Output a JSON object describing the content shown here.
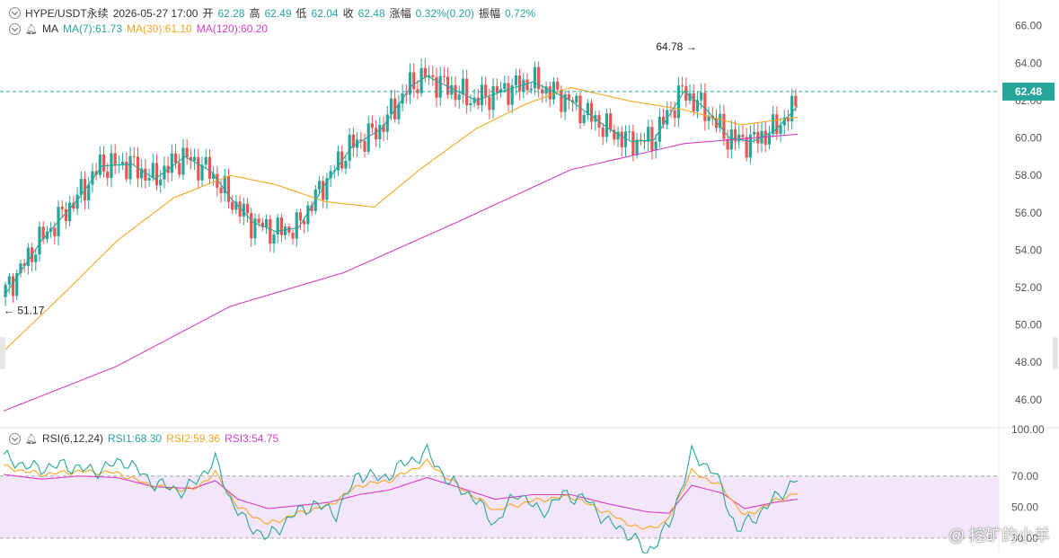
{
  "header": {
    "symbol": "HYPE/USDT永续",
    "datetime": "2026-05-27 17:00",
    "open_label": "开",
    "open": "62.28",
    "high_label": "高",
    "high": "62.49",
    "low_label": "低",
    "low": "62.04",
    "close_label": "收",
    "close": "62.48",
    "change_label": "涨幅",
    "change": "0.32%(0.20)",
    "amp_label": "振幅",
    "amp": "0.72%"
  },
  "ma_legend": {
    "title": "MA",
    "ma7": "MA(7):61.73",
    "ma30": "MA(30):61.10",
    "ma120": "MA(120):60.20"
  },
  "rsi_legend": {
    "title": "RSI(6,12,24)",
    "rsi1": "RSI1:68.30",
    "rsi2": "RSI2:59.36",
    "rsi3": "RSI3:54.75"
  },
  "price_tag": "62.48",
  "high_marker": "64.78",
  "low_marker": "51.17",
  "watermark": "@ 挖矿的小羊",
  "colors": {
    "up": "#26a69a",
    "down": "#ef5350",
    "ma7": "#26a69a",
    "ma30": "#f5a623",
    "ma120": "#d63fc1",
    "rsi_band": "#f3e6fb",
    "last_price": "#26a69a"
  },
  "chart_data": [
    {
      "type": "candlestick",
      "title": "HYPE/USDT永续",
      "ylim": [
        44.6,
        66.8
      ],
      "y_ticks": [
        "66.00",
        "64.00",
        "62.00",
        "60.00",
        "58.00",
        "56.00",
        "54.00",
        "52.00",
        "50.00",
        "48.00",
        "46.00"
      ],
      "last_price": 62.48,
      "annotations": [
        {
          "text": "64.78",
          "value": 64.78
        },
        {
          "text": "51.17",
          "value": 51.17
        }
      ],
      "series": [
        {
          "name": "MA(7)",
          "keypoints": [
            [
              0,
              51.5
            ],
            [
              10,
              54.5
            ],
            [
              20,
              56.8
            ],
            [
              26,
              58.5
            ],
            [
              34,
              58.6
            ],
            [
              40,
              57.8
            ],
            [
              48,
              59.0
            ],
            [
              55,
              58.2
            ],
            [
              60,
              56.8
            ],
            [
              66,
              55.5
            ],
            [
              72,
              55.0
            ],
            [
              78,
              55.2
            ],
            [
              85,
              57.5
            ],
            [
              92,
              59.5
            ],
            [
              100,
              60.5
            ],
            [
              108,
              62.8
            ],
            [
              112,
              63.3
            ],
            [
              118,
              62.7
            ],
            [
              125,
              62.0
            ],
            [
              132,
              62.5
            ],
            [
              140,
              63.0
            ],
            [
              150,
              62.0
            ],
            [
              160,
              60.5
            ],
            [
              166,
              59.8
            ],
            [
              172,
              59.9
            ],
            [
              180,
              62.5
            ],
            [
              186,
              61.5
            ],
            [
              192,
              60.0
            ],
            [
              198,
              59.8
            ],
            [
              204,
              60.4
            ],
            [
              210,
              61.7
            ]
          ]
        },
        {
          "name": "MA(30)",
          "keypoints": [
            [
              0,
              48.6
            ],
            [
              15,
              51.5
            ],
            [
              30,
              54.5
            ],
            [
              45,
              56.8
            ],
            [
              60,
              58.0
            ],
            [
              72,
              57.5
            ],
            [
              85,
              56.6
            ],
            [
              98,
              56.3
            ],
            [
              110,
              58.3
            ],
            [
              125,
              60.5
            ],
            [
              138,
              61.8
            ],
            [
              150,
              62.7
            ],
            [
              165,
              62.0
            ],
            [
              180,
              61.5
            ],
            [
              195,
              60.7
            ],
            [
              210,
              61.1
            ]
          ]
        },
        {
          "name": "MA(120)",
          "keypoints": [
            [
              0,
              45.4
            ],
            [
              30,
              47.8
            ],
            [
              60,
              51.0
            ],
            [
              90,
              52.8
            ],
            [
              120,
              55.5
            ],
            [
              150,
              58.3
            ],
            [
              180,
              59.7
            ],
            [
              210,
              60.2
            ]
          ]
        }
      ]
    },
    {
      "type": "line",
      "title": "RSI(6,12,24)",
      "ylim": [
        27,
        100
      ],
      "y_ticks": [
        "100.00",
        "70.00",
        "50.00",
        "30.00"
      ],
      "band": [
        30,
        70
      ],
      "series": [
        {
          "name": "RSI1",
          "keypoints": [
            [
              0,
              82
            ],
            [
              8,
              75
            ],
            [
              16,
              77
            ],
            [
              24,
              73
            ],
            [
              32,
              80
            ],
            [
              40,
              65
            ],
            [
              48,
              60
            ],
            [
              56,
              80
            ],
            [
              60,
              55
            ],
            [
              64,
              40
            ],
            [
              70,
              30
            ],
            [
              76,
              44
            ],
            [
              82,
              52
            ],
            [
              88,
              46
            ],
            [
              94,
              72
            ],
            [
              100,
              68
            ],
            [
              106,
              78
            ],
            [
              112,
              85
            ],
            [
              118,
              66
            ],
            [
              124,
              57
            ],
            [
              130,
              39
            ],
            [
              136,
              60
            ],
            [
              142,
              46
            ],
            [
              148,
              58
            ],
            [
              154,
              55
            ],
            [
              160,
              40
            ],
            [
              166,
              32
            ],
            [
              170,
              20
            ],
            [
              176,
              38
            ],
            [
              182,
              84
            ],
            [
              188,
              73
            ],
            [
              194,
              35
            ],
            [
              200,
              46
            ],
            [
              206,
              60
            ],
            [
              210,
              68
            ]
          ]
        },
        {
          "name": "RSI2",
          "keypoints": [
            [
              0,
              76
            ],
            [
              10,
              71
            ],
            [
              20,
              73
            ],
            [
              30,
              72
            ],
            [
              40,
              63
            ],
            [
              50,
              61
            ],
            [
              56,
              72
            ],
            [
              62,
              50
            ],
            [
              70,
              39
            ],
            [
              78,
              46
            ],
            [
              86,
              51
            ],
            [
              94,
              64
            ],
            [
              102,
              67
            ],
            [
              112,
              79
            ],
            [
              120,
              64
            ],
            [
              130,
              48
            ],
            [
              140,
              54
            ],
            [
              150,
              57
            ],
            [
              160,
              46
            ],
            [
              168,
              36
            ],
            [
              175,
              39
            ],
            [
              182,
              73
            ],
            [
              190,
              63
            ],
            [
              196,
              44
            ],
            [
              204,
              54
            ],
            [
              210,
              59
            ]
          ]
        },
        {
          "name": "RSI3",
          "keypoints": [
            [
              0,
              71
            ],
            [
              10,
              68
            ],
            [
              20,
              70
            ],
            [
              30,
              69
            ],
            [
              40,
              63
            ],
            [
              50,
              62
            ],
            [
              56,
              67
            ],
            [
              62,
              55
            ],
            [
              70,
              49
            ],
            [
              78,
              51
            ],
            [
              86,
              53
            ],
            [
              94,
              58
            ],
            [
              102,
              61
            ],
            [
              112,
              69
            ],
            [
              120,
              63
            ],
            [
              130,
              55
            ],
            [
              140,
              58
            ],
            [
              150,
              58
            ],
            [
              160,
              52
            ],
            [
              170,
              47
            ],
            [
              176,
              46
            ],
            [
              182,
              64
            ],
            [
              190,
              59
            ],
            [
              196,
              49
            ],
            [
              204,
              53
            ],
            [
              210,
              55
            ]
          ]
        }
      ]
    }
  ]
}
